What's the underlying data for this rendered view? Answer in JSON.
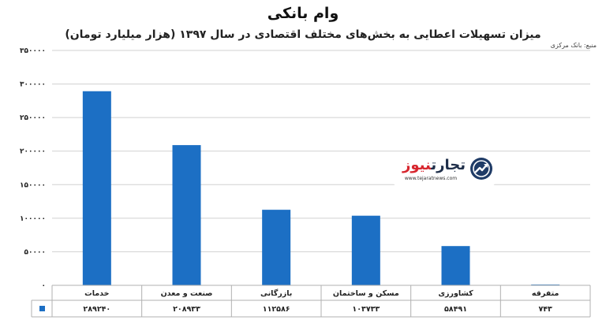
{
  "header": {
    "title": "وام بانکی",
    "subtitle": "میزان تسهیلات اعطایی به بخش‌های مختلف اقتصادی در سال ۱۳۹۷ (هزار میلیارد تومان)",
    "source": "منبع: بانک مرکزی"
  },
  "logo": {
    "name_part1": "تجارت",
    "name_part2": "نیوز",
    "url": "www.tejaratnews.com",
    "icon": "trend-arrow-icon"
  },
  "colors": {
    "bar": "#1c6fc4",
    "grid": "#d0d0d0",
    "legend_marker": "#1c6fc4"
  },
  "chart_data": {
    "type": "bar",
    "categories": [
      "خدمات",
      "صنعت و معدن",
      "بازرگانی",
      "مسکن و ساختمان",
      "کشاورزی",
      "متفرقه"
    ],
    "values": [
      289240,
      208933,
      112586,
      103733,
      58491,
      743
    ],
    "value_labels": [
      "۲۸۹۲۴۰",
      "۲۰۸۹۳۳",
      "۱۱۲۵۸۶",
      "۱۰۳۷۳۳",
      "۵۸۴۹۱",
      "۷۴۳"
    ],
    "ylim": [
      0,
      350000
    ],
    "yticks": [
      0,
      50000,
      100000,
      150000,
      200000,
      250000,
      300000,
      350000
    ],
    "ytick_labels": [
      "۰",
      "۵۰۰۰۰",
      "۱۰۰۰۰۰",
      "۱۵۰۰۰۰",
      "۲۰۰۰۰۰",
      "۲۵۰۰۰۰",
      "۳۰۰۰۰۰",
      "۳۵۰۰۰۰"
    ],
    "grid": true,
    "legend": "data-table-below"
  }
}
